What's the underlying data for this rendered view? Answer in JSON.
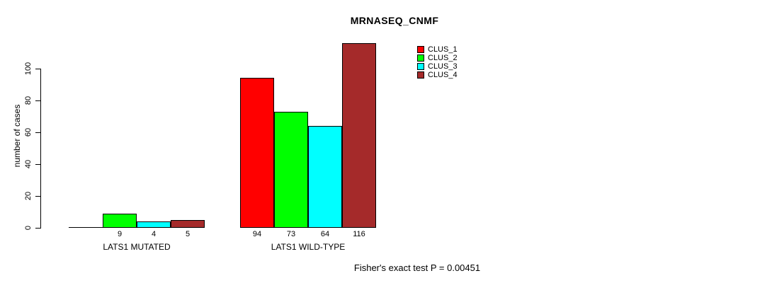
{
  "chart_data": {
    "type": "bar",
    "title": "MRNASEQ_CNMF",
    "ylabel": "number of cases",
    "xlabel": "",
    "categories": [
      "LATS1 MUTATED",
      "LATS1 WILD-TYPE"
    ],
    "series": [
      {
        "name": "CLUS_1",
        "color": "#ff0000",
        "values": [
          0,
          94
        ]
      },
      {
        "name": "CLUS_2",
        "color": "#00ff00",
        "values": [
          9,
          73
        ]
      },
      {
        "name": "CLUS_3",
        "color": "#00ffff",
        "values": [
          4,
          64
        ]
      },
      {
        "name": "CLUS_4",
        "color": "#a52a2a",
        "values": [
          5,
          116
        ]
      }
    ],
    "yticks": [
      0,
      20,
      40,
      60,
      80,
      100
    ],
    "ylim": [
      0,
      120
    ],
    "grid": false,
    "legend_position": "top-right",
    "show_value_labels": true,
    "value_label_hidden_when_zero": true,
    "annotation": "Fisher's exact test P = 0.00451",
    "axis_color": "#000000",
    "bar_border_color": "#000000"
  }
}
